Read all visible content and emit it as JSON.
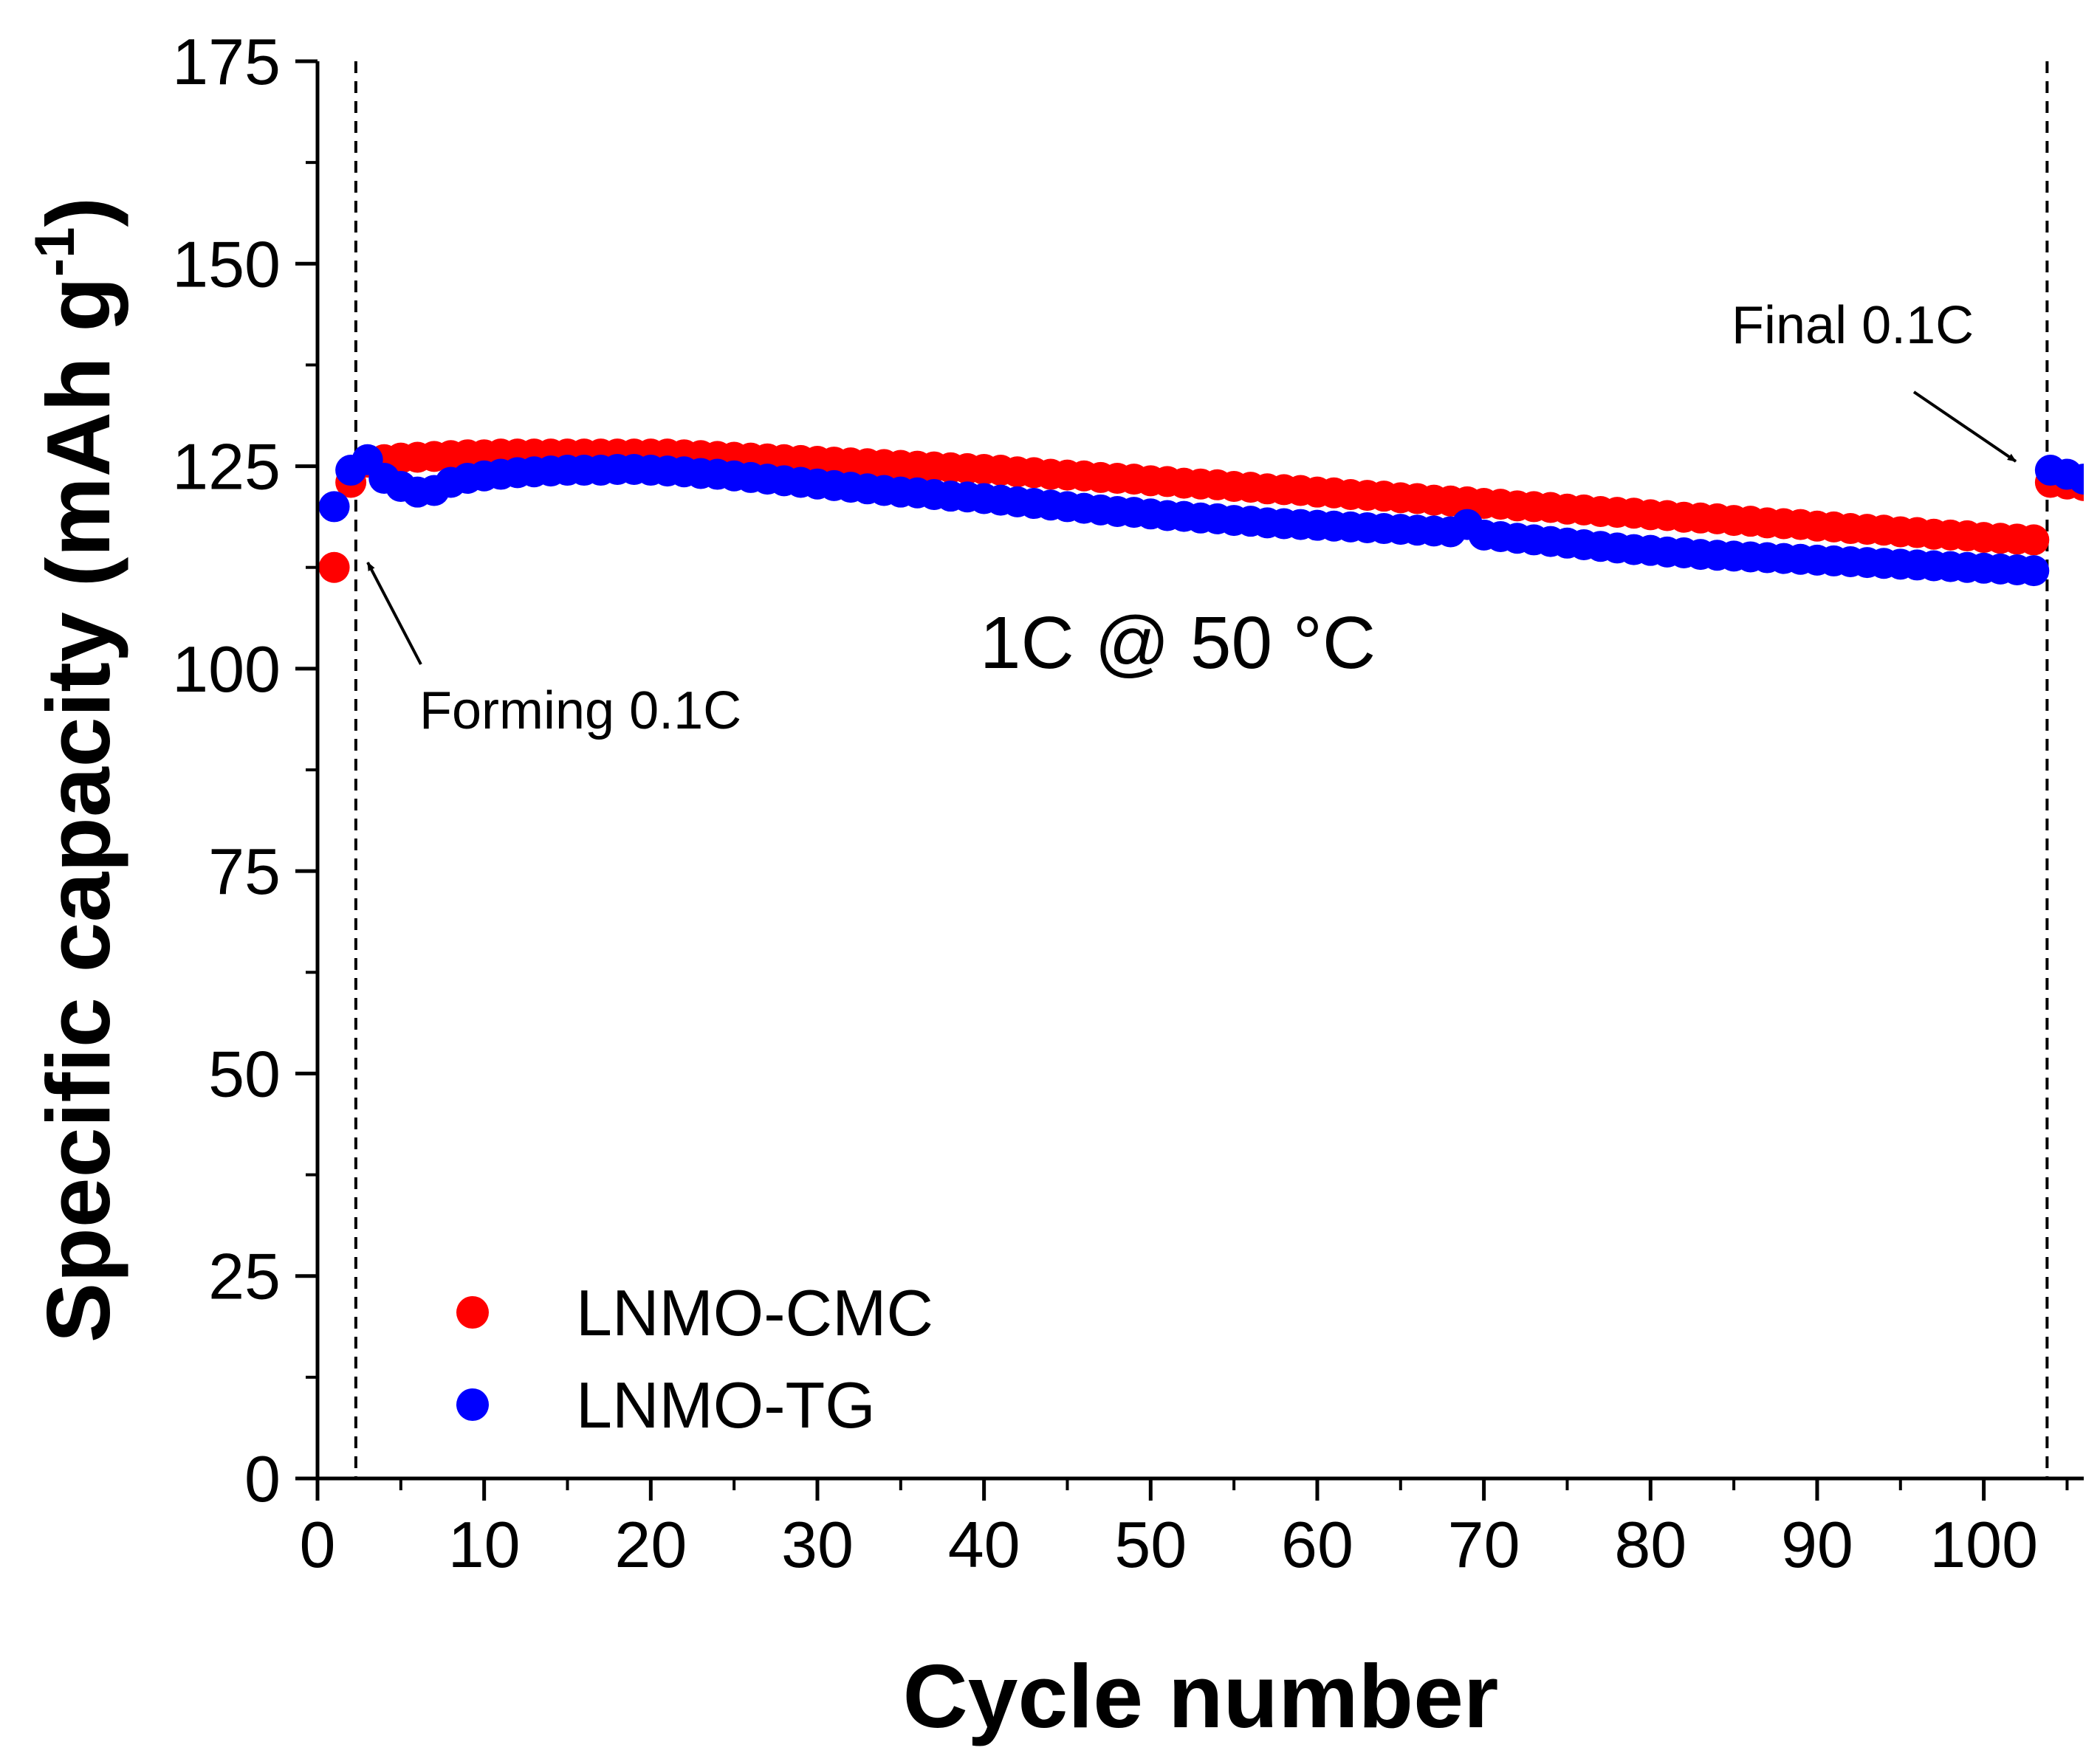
{
  "chart_data": {
    "type": "scatter",
    "xlabel": "Cycle number",
    "ylabel": "Specific capacity (mAh g",
    "ylabel_sup": "-1",
    "ylabel_close": ")",
    "xlim": [
      0,
      106
    ],
    "ylim": [
      0,
      175
    ],
    "xticks": [
      0,
      10,
      20,
      30,
      40,
      50,
      60,
      70,
      80,
      90,
      100
    ],
    "yticks": [
      0,
      25,
      50,
      75,
      100,
      125,
      150,
      175
    ],
    "vlines": [
      2.3,
      103.8
    ],
    "annotations": {
      "forming": "Forming 0.1C",
      "final": "Final 0.1C",
      "condition": "1C @ 50 °C"
    },
    "legend": {
      "position": "bottom-left"
    },
    "series": [
      {
        "name": "LNMO-CMC",
        "color": "#ff0000",
        "x": [
          1,
          2,
          3,
          4,
          5,
          6,
          7,
          8,
          9,
          10,
          11,
          12,
          13,
          14,
          15,
          16,
          17,
          18,
          19,
          20,
          21,
          22,
          23,
          24,
          25,
          26,
          27,
          28,
          29,
          30,
          31,
          32,
          33,
          34,
          35,
          36,
          37,
          38,
          39,
          40,
          41,
          42,
          43,
          44,
          45,
          46,
          47,
          48,
          49,
          50,
          51,
          52,
          53,
          54,
          55,
          56,
          57,
          58,
          59,
          60,
          61,
          62,
          63,
          64,
          65,
          66,
          67,
          68,
          69,
          70,
          71,
          72,
          73,
          74,
          75,
          76,
          77,
          78,
          79,
          80,
          81,
          82,
          83,
          84,
          85,
          86,
          87,
          88,
          89,
          90,
          91,
          92,
          93,
          94,
          95,
          96,
          97,
          98,
          99,
          100,
          101,
          102,
          103,
          104,
          105,
          106
        ],
        "y": [
          112.5,
          123.0,
          125.5,
          125.8,
          126.0,
          126.1,
          126.2,
          126.3,
          126.4,
          126.4,
          126.5,
          126.5,
          126.5,
          126.5,
          126.5,
          126.5,
          126.5,
          126.5,
          126.5,
          126.5,
          126.5,
          126.4,
          126.3,
          126.2,
          126.1,
          126.0,
          125.9,
          125.8,
          125.7,
          125.6,
          125.5,
          125.4,
          125.3,
          125.2,
          125.1,
          125.0,
          124.9,
          124.8,
          124.7,
          124.6,
          124.5,
          124.3,
          124.2,
          124.0,
          123.9,
          123.8,
          123.6,
          123.5,
          123.4,
          123.2,
          123.1,
          122.9,
          122.8,
          122.7,
          122.5,
          122.4,
          122.2,
          122.1,
          122.0,
          121.8,
          121.7,
          121.5,
          121.4,
          121.3,
          121.1,
          121.0,
          120.8,
          120.7,
          120.6,
          120.4,
          120.3,
          120.1,
          120.0,
          119.9,
          119.7,
          119.6,
          119.4,
          119.3,
          119.2,
          119.0,
          118.9,
          118.7,
          118.6,
          118.5,
          118.3,
          118.2,
          118.0,
          117.9,
          117.8,
          117.6,
          117.5,
          117.3,
          117.2,
          117.1,
          116.9,
          116.8,
          116.6,
          116.5,
          116.4,
          116.2,
          116.1,
          116.0,
          115.9,
          123.0,
          122.8,
          122.6
        ]
      },
      {
        "name": "LNMO-TG",
        "color": "#0000ff",
        "x": [
          1,
          2,
          3,
          4,
          5,
          6,
          7,
          8,
          9,
          10,
          11,
          12,
          13,
          14,
          15,
          16,
          17,
          18,
          19,
          20,
          21,
          22,
          23,
          24,
          25,
          26,
          27,
          28,
          29,
          30,
          31,
          32,
          33,
          34,
          35,
          36,
          37,
          38,
          39,
          40,
          41,
          42,
          43,
          44,
          45,
          46,
          47,
          48,
          49,
          50,
          51,
          52,
          53,
          54,
          55,
          56,
          57,
          58,
          59,
          60,
          61,
          62,
          63,
          64,
          65,
          66,
          67,
          68,
          69,
          70,
          71,
          72,
          73,
          74,
          75,
          76,
          77,
          78,
          79,
          80,
          81,
          82,
          83,
          84,
          85,
          86,
          87,
          88,
          89,
          90,
          91,
          92,
          93,
          94,
          95,
          96,
          97,
          98,
          99,
          100,
          101,
          102,
          103,
          104,
          105,
          106
        ],
        "y": [
          120.0,
          124.5,
          125.8,
          123.5,
          122.5,
          121.8,
          122.0,
          123.0,
          123.5,
          123.8,
          124.0,
          124.2,
          124.3,
          124.4,
          124.5,
          124.5,
          124.5,
          124.6,
          124.6,
          124.5,
          124.4,
          124.3,
          124.1,
          124.0,
          123.8,
          123.6,
          123.4,
          123.2,
          123.0,
          122.8,
          122.6,
          122.4,
          122.2,
          122.0,
          121.8,
          121.7,
          121.5,
          121.3,
          121.2,
          121.0,
          120.8,
          120.6,
          120.4,
          120.2,
          120.0,
          119.8,
          119.6,
          119.4,
          119.3,
          119.1,
          118.9,
          118.8,
          118.6,
          118.5,
          118.3,
          118.2,
          118.0,
          117.9,
          117.8,
          117.7,
          117.6,
          117.5,
          117.4,
          117.3,
          117.2,
          117.1,
          117.0,
          116.9,
          117.8,
          116.5,
          116.3,
          116.1,
          115.9,
          115.7,
          115.5,
          115.3,
          115.1,
          114.9,
          114.7,
          114.6,
          114.4,
          114.3,
          114.1,
          114.0,
          113.9,
          113.8,
          113.7,
          113.6,
          113.5,
          113.4,
          113.3,
          113.2,
          113.1,
          113.0,
          112.9,
          112.8,
          112.7,
          112.6,
          112.5,
          112.4,
          112.3,
          112.2,
          112.1,
          124.5,
          124.0,
          123.4
        ]
      }
    ]
  }
}
